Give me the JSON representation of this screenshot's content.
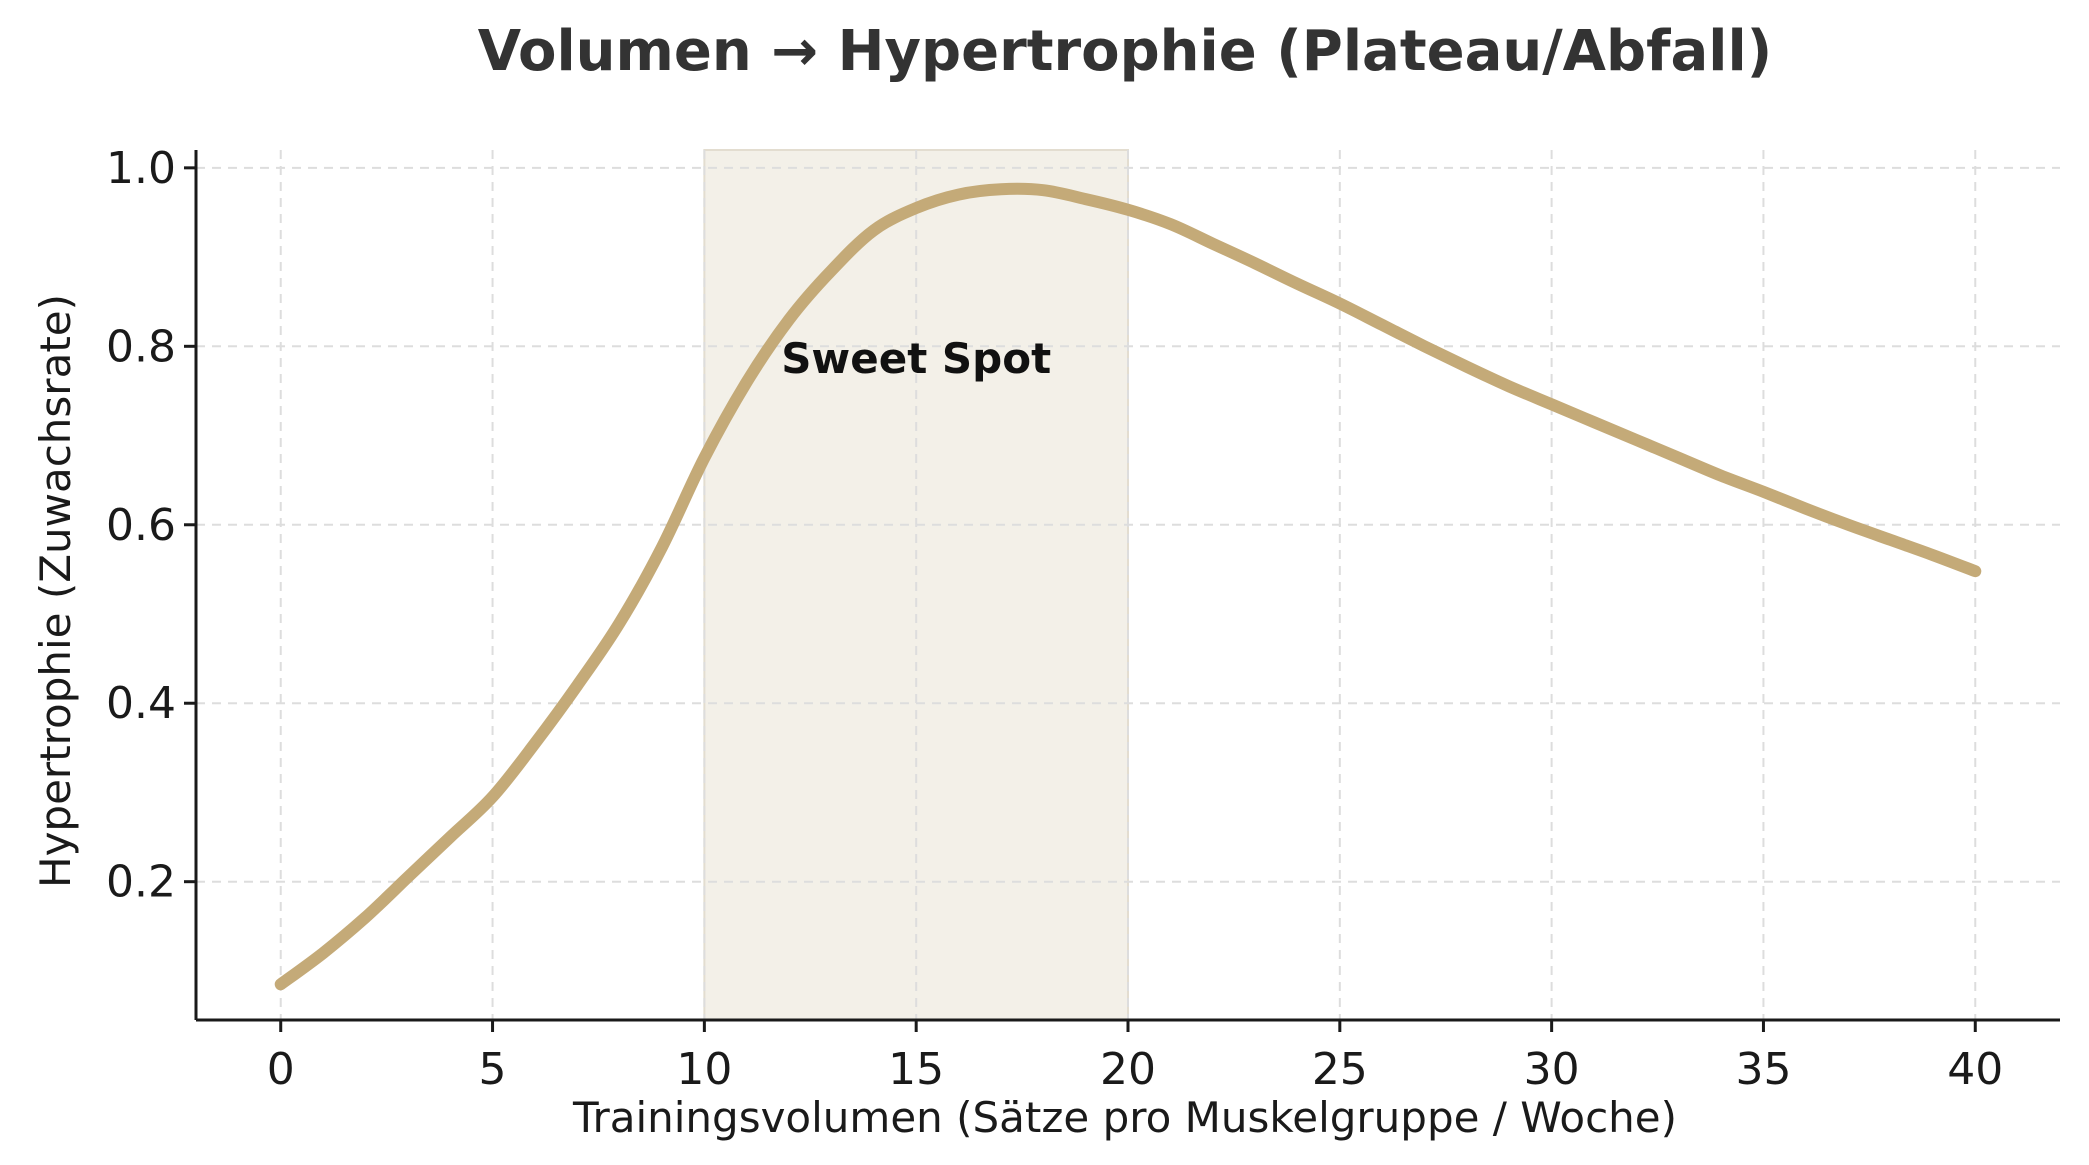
{
  "chart_data": {
    "type": "line",
    "title": "Volumen → Hypertrophie (Plateau/Abfall)",
    "xlabel": "Trainingsvolumen (Sätze pro Muskelgruppe / Woche)",
    "ylabel": "Hypertrophie (Zuwachsrate)",
    "xlim": [
      -2,
      42
    ],
    "ylim": [
      0.045,
      1.02
    ],
    "x_ticks": [
      0,
      5,
      10,
      15,
      20,
      25,
      30,
      35,
      40
    ],
    "y_ticks": [
      0.2,
      0.4,
      0.6,
      0.8,
      1.0
    ],
    "y_tick_labels": [
      "0.2",
      "0.4",
      "0.6",
      "0.8",
      "1.0"
    ],
    "grid": true,
    "series": [
      {
        "x": [
          0,
          1,
          2,
          3,
          4,
          5,
          6,
          7,
          8,
          9,
          10,
          11,
          12,
          13,
          14,
          15,
          16,
          17,
          18,
          19,
          20,
          21,
          22,
          23,
          24,
          25,
          26,
          27,
          28,
          29,
          30,
          31,
          32,
          33,
          34,
          35,
          36,
          37,
          38,
          39,
          40
        ],
        "values": [
          0.085,
          0.12,
          0.16,
          0.205,
          0.25,
          0.295,
          0.355,
          0.42,
          0.49,
          0.575,
          0.675,
          0.76,
          0.83,
          0.885,
          0.93,
          0.955,
          0.97,
          0.976,
          0.975,
          0.965,
          0.953,
          0.937,
          0.915,
          0.893,
          0.87,
          0.848,
          0.824,
          0.8,
          0.777,
          0.755,
          0.735,
          0.715,
          0.695,
          0.675,
          0.655,
          0.637,
          0.618,
          0.6,
          0.583,
          0.566,
          0.548
        ],
        "color": "#c4aa78"
      }
    ],
    "highlight_band": {
      "x_start": 10,
      "x_end": 20,
      "color": "#f3f0e8",
      "edge_color": "#e3ddd0"
    },
    "annotations": [
      {
        "text": "Sweet Spot",
        "x": 15,
        "y": 0.77
      }
    ]
  }
}
